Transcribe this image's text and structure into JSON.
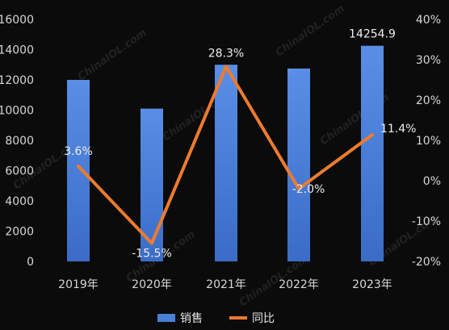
{
  "chart_data": {
    "type": "bar",
    "categories": [
      "2019年",
      "2020年",
      "2021年",
      "2022年",
      "2023年"
    ],
    "series": [
      {
        "name": "销售",
        "chart_type": "bar",
        "axis": "left",
        "values": [
          12000,
          10100,
          13000,
          12750,
          14254.9
        ],
        "data_labels": [
          "",
          "",
          "",
          "",
          "14254.9"
        ],
        "color": "#4a7fd6"
      },
      {
        "name": "同比",
        "chart_type": "line",
        "axis": "right",
        "values": [
          3.6,
          -15.5,
          28.3,
          -2.0,
          11.4
        ],
        "data_labels": [
          "3.6%",
          "-15.5%",
          "28.3%",
          "-2.0%",
          "11.4%"
        ],
        "color": "#ef7b2e"
      }
    ],
    "y_left": {
      "ylim": [
        0,
        16000
      ],
      "ticks": [
        "0",
        "2000",
        "4000",
        "6000",
        "8000",
        "10000",
        "12000",
        "14000",
        "16000"
      ]
    },
    "y_right": {
      "ylim": [
        -20,
        40
      ],
      "ticks": [
        "-20%",
        "-10%",
        "0%",
        "10%",
        "20%",
        "30%",
        "40%"
      ]
    },
    "grid": false,
    "legend_position": "bottom-center",
    "watermark": "ChinaIOL.com"
  }
}
